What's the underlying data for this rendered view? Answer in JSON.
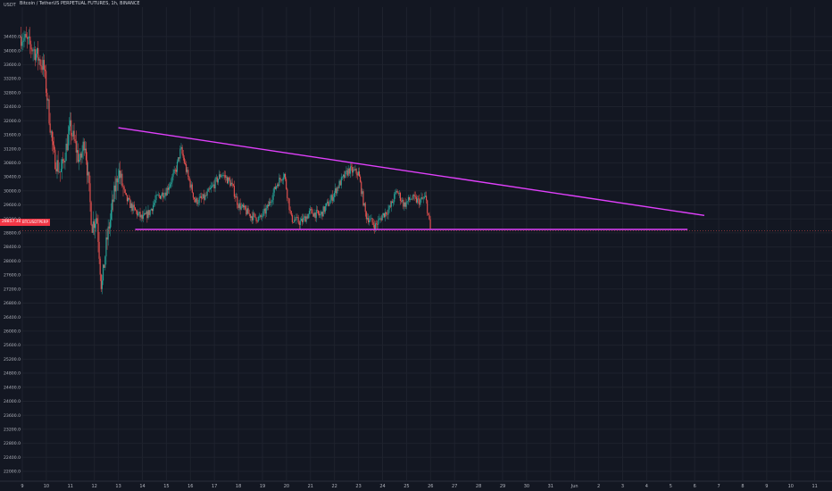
{
  "header": {
    "currency": "USDT",
    "title": "Bitcoin / TetherUS PERPETUAL FUTURES, 1h, BINANCE"
  },
  "price_label": {
    "value": "28857.30",
    "symbol": "BTCUSDTPERP"
  },
  "colors": {
    "background": "#131722",
    "up": "#26a69a",
    "down": "#ef5350",
    "trendline": "#e040fb",
    "price_tag": "#f23645",
    "axis_text": "#b2b5be"
  },
  "chart_data": {
    "type": "candlestick",
    "title": "Bitcoin / TetherUS PERPETUAL FUTURES, 1h, BINANCE",
    "interval": "1h",
    "ylim": [
      22000,
      34600
    ],
    "y_ticks": [
      "34400.0",
      "34000.0",
      "33600.0",
      "33200.0",
      "32800.0",
      "32400.0",
      "32000.0",
      "31600.0",
      "31200.0",
      "30800.0",
      "30400.0",
      "30000.0",
      "29600.0",
      "29200.0",
      "28800.0",
      "28400.0",
      "28000.0",
      "27600.0",
      "27200.0",
      "26800.0",
      "26400.0",
      "26000.0",
      "25600.0",
      "25200.0",
      "24800.0",
      "24400.0",
      "24000.0",
      "23600.0",
      "23200.0",
      "22800.0",
      "22400.0",
      "22000.0"
    ],
    "x_ticks": [
      "9",
      "10",
      "11",
      "12",
      "13",
      "14",
      "15",
      "16",
      "17",
      "18",
      "19",
      "20",
      "21",
      "22",
      "23",
      "24",
      "25",
      "26",
      "27",
      "28",
      "29",
      "30",
      "31",
      "Jun",
      "2",
      "3",
      "4",
      "5",
      "6",
      "7",
      "8",
      "9",
      "10",
      "11"
    ],
    "x_start_day": 9,
    "close_points": [
      [
        9.0,
        34400
      ],
      [
        9.5,
        34000
      ],
      [
        9.9,
        33500
      ],
      [
        10.3,
        31000
      ],
      [
        10.6,
        30500
      ],
      [
        11.0,
        31800
      ],
      [
        11.4,
        30800
      ],
      [
        11.6,
        31500
      ],
      [
        11.9,
        29000
      ],
      [
        12.1,
        29300
      ],
      [
        12.3,
        27200
      ],
      [
        12.5,
        28500
      ],
      [
        12.8,
        29800
      ],
      [
        13.0,
        30600
      ],
      [
        13.3,
        29800
      ],
      [
        13.6,
        29500
      ],
      [
        14.0,
        29200
      ],
      [
        14.3,
        29400
      ],
      [
        14.6,
        29800
      ],
      [
        15.0,
        30000
      ],
      [
        15.4,
        30600
      ],
      [
        15.6,
        31200
      ],
      [
        15.9,
        30400
      ],
      [
        16.2,
        29700
      ],
      [
        16.6,
        29800
      ],
      [
        17.0,
        30200
      ],
      [
        17.3,
        30500
      ],
      [
        17.7,
        30200
      ],
      [
        18.0,
        29600
      ],
      [
        18.5,
        29300
      ],
      [
        18.9,
        29200
      ],
      [
        19.2,
        29500
      ],
      [
        19.6,
        30200
      ],
      [
        19.9,
        30500
      ],
      [
        20.2,
        29200
      ],
      [
        20.6,
        29100
      ],
      [
        21.0,
        29400
      ],
      [
        21.4,
        29300
      ],
      [
        21.8,
        29700
      ],
      [
        22.2,
        30200
      ],
      [
        22.6,
        30600
      ],
      [
        23.0,
        30500
      ],
      [
        23.3,
        29300
      ],
      [
        23.7,
        29000
      ],
      [
        24.0,
        29300
      ],
      [
        24.3,
        29500
      ],
      [
        24.6,
        30000
      ],
      [
        24.9,
        29600
      ],
      [
        25.2,
        29800
      ],
      [
        25.5,
        29700
      ],
      [
        25.8,
        29800
      ],
      [
        26.0,
        28860
      ]
    ],
    "annotations": [
      {
        "type": "descending_trendline",
        "from": [
          13.0,
          31800
        ],
        "to": [
          37.4,
          29300
        ]
      },
      {
        "type": "horizontal_support",
        "from": [
          13.7,
          28900
        ],
        "to": [
          36.7,
          28900
        ]
      }
    ],
    "legend": "none",
    "grid": true
  }
}
